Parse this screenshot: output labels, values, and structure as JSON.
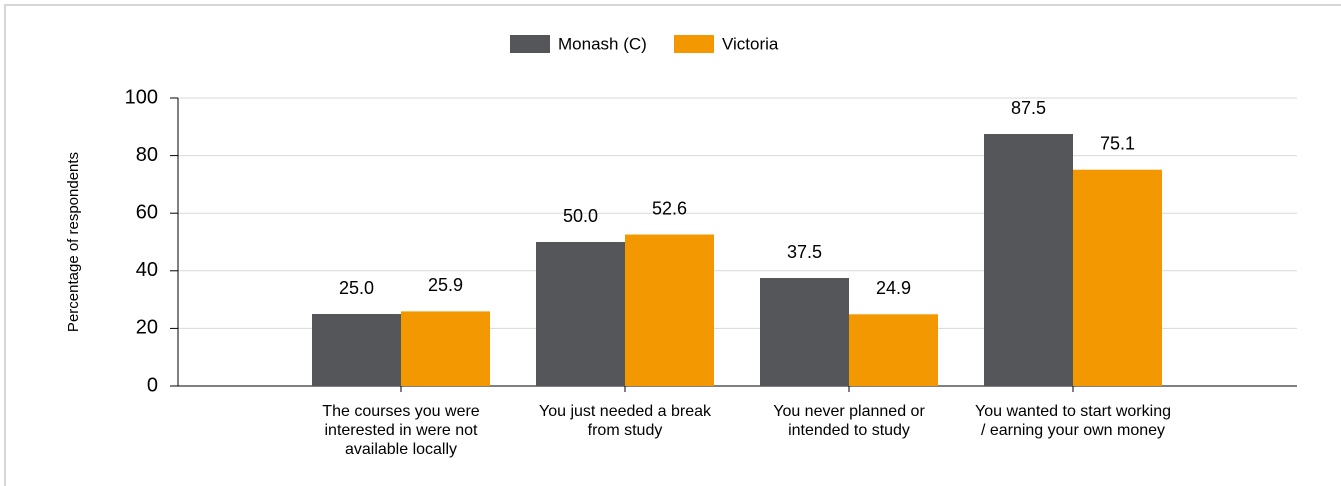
{
  "chart_data": {
    "type": "bar",
    "y_label": "Percentage of respondents",
    "categories": [
      "The courses you were interested in were not available locally",
      "You just needed a break from study",
      "You never planned or intended to study",
      "You wanted to start working / earning your own money"
    ],
    "series": [
      {
        "name": "Monash (C)",
        "color": "#54565a",
        "values": [
          25.0,
          50.0,
          37.5,
          87.5
        ],
        "value_labels": [
          "25.0",
          "50.0",
          "37.5",
          "87.5"
        ]
      },
      {
        "name": "Victoria",
        "color": "#f39800",
        "values": [
          25.9,
          52.6,
          24.9,
          75.1
        ],
        "value_labels": [
          "25.9",
          "52.6",
          "24.9",
          "75.1"
        ]
      }
    ],
    "ylim": [
      0,
      100
    ],
    "yticks": [
      0,
      20,
      40,
      60,
      80,
      100
    ],
    "grid": true,
    "legend": "top"
  }
}
